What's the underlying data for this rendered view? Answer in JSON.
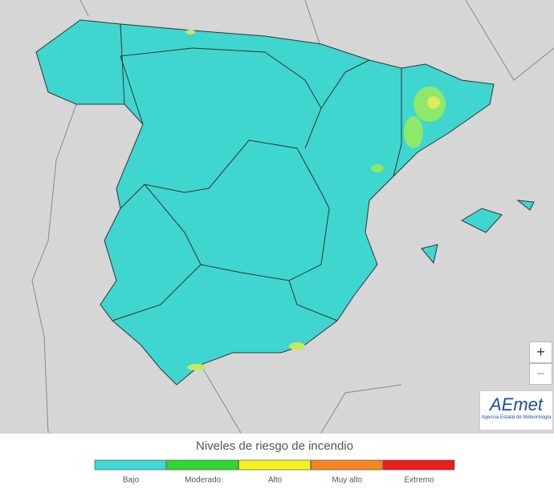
{
  "legend": {
    "title": "Niveles de riesgo de incendio",
    "items": [
      {
        "label": "Bajo",
        "color": "#3ed9d4"
      },
      {
        "label": "Moderado",
        "color": "#2ed82e"
      },
      {
        "label": "Alto",
        "color": "#f4f41c"
      },
      {
        "label": "Muy alto",
        "color": "#f7861f"
      },
      {
        "label": "Extremo",
        "color": "#ec1c1c"
      }
    ]
  },
  "zoom": {
    "in": "+",
    "out": "−"
  },
  "logo": {
    "name": "AEmet",
    "subtitle": "Agencia Estatal de Meteorología"
  }
}
